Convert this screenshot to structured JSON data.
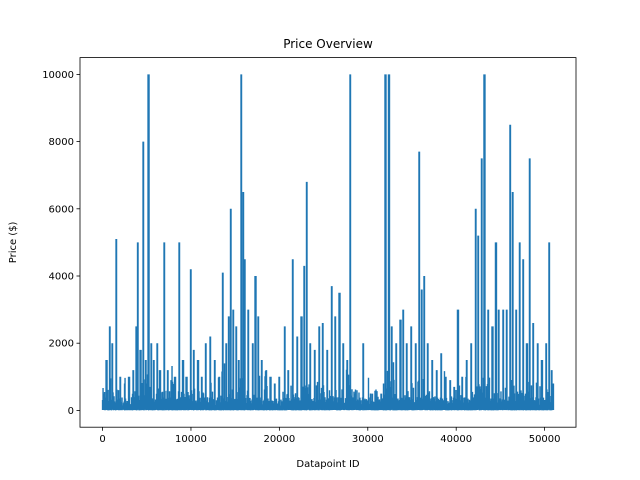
{
  "chart_data": {
    "type": "line",
    "title": "Price Overview",
    "xlabel": "Datapoint ID",
    "ylabel": "Price ($)",
    "xlim": [
      -2550,
      53550
    ],
    "ylim": [
      -500,
      10500
    ],
    "xticks": [
      0,
      10000,
      20000,
      30000,
      40000,
      50000
    ],
    "yticks": [
      0,
      2000,
      4000,
      6000,
      8000,
      10000
    ],
    "grid": false,
    "legend": "none",
    "series_color": "#1f77b4",
    "n_points": 51000,
    "baseline": {
      "min": 0,
      "typical_max": 400
    },
    "peaks": [
      [
        150,
        500
      ],
      [
        450,
        1500
      ],
      [
        800,
        2500
      ],
      [
        1100,
        2000
      ],
      [
        1550,
        5100
      ],
      [
        2000,
        1000
      ],
      [
        2500,
        800
      ],
      [
        3000,
        1000
      ],
      [
        3500,
        1200
      ],
      [
        3800,
        2500
      ],
      [
        4000,
        5000
      ],
      [
        4300,
        1800
      ],
      [
        4600,
        8000
      ],
      [
        4900,
        1500
      ],
      [
        5200,
        10000
      ],
      [
        5500,
        2000
      ],
      [
        5800,
        1500
      ],
      [
        6200,
        2000
      ],
      [
        6500,
        1200
      ],
      [
        7000,
        5000
      ],
      [
        7400,
        1200
      ],
      [
        7800,
        900
      ],
      [
        8200,
        1000
      ],
      [
        8700,
        5000
      ],
      [
        9100,
        1500
      ],
      [
        9500,
        1000
      ],
      [
        10000,
        4200
      ],
      [
        10300,
        1800
      ],
      [
        10800,
        1500
      ],
      [
        11200,
        1000
      ],
      [
        11700,
        2000
      ],
      [
        12200,
        2200
      ],
      [
        12700,
        1500
      ],
      [
        13200,
        1000
      ],
      [
        13600,
        4100
      ],
      [
        14000,
        2000
      ],
      [
        14300,
        2800
      ],
      [
        14500,
        6000
      ],
      [
        14800,
        3000
      ],
      [
        15100,
        2500
      ],
      [
        15400,
        1500
      ],
      [
        15700,
        10000
      ],
      [
        15900,
        6500
      ],
      [
        16100,
        4500
      ],
      [
        16500,
        3000
      ],
      [
        17000,
        2000
      ],
      [
        17300,
        4000
      ],
      [
        17600,
        2800
      ],
      [
        18000,
        1500
      ],
      [
        18500,
        1200
      ],
      [
        19000,
        1000
      ],
      [
        19500,
        800
      ],
      [
        20000,
        1000
      ],
      [
        20600,
        2500
      ],
      [
        21000,
        1200
      ],
      [
        21500,
        4500
      ],
      [
        22000,
        2200
      ],
      [
        22500,
        2800
      ],
      [
        22800,
        4300
      ],
      [
        23100,
        6800
      ],
      [
        23500,
        2000
      ],
      [
        24000,
        1800
      ],
      [
        24500,
        2500
      ],
      [
        24900,
        2600
      ],
      [
        25400,
        1800
      ],
      [
        25900,
        3700
      ],
      [
        26300,
        2800
      ],
      [
        26800,
        3500
      ],
      [
        27200,
        2000
      ],
      [
        27700,
        1500
      ],
      [
        28000,
        10000
      ],
      [
        28500,
        500
      ],
      [
        29000,
        300
      ],
      [
        29500,
        2000
      ],
      [
        30000,
        300
      ],
      [
        30500,
        500
      ],
      [
        31000,
        400
      ],
      [
        31500,
        500
      ],
      [
        32000,
        10000
      ],
      [
        32400,
        10000
      ],
      [
        32700,
        2500
      ],
      [
        33200,
        2000
      ],
      [
        33700,
        2700
      ],
      [
        34000,
        3000
      ],
      [
        34400,
        2000
      ],
      [
        34900,
        2500
      ],
      [
        35400,
        2000
      ],
      [
        35800,
        7700
      ],
      [
        36100,
        3600
      ],
      [
        36400,
        4000
      ],
      [
        36800,
        2000
      ],
      [
        37300,
        1500
      ],
      [
        37800,
        1200
      ],
      [
        38300,
        1700
      ],
      [
        38800,
        1000
      ],
      [
        39300,
        900
      ],
      [
        39800,
        700
      ],
      [
        40200,
        3000
      ],
      [
        40700,
        1000
      ],
      [
        41200,
        1500
      ],
      [
        41700,
        2000
      ],
      [
        42200,
        6000
      ],
      [
        42500,
        5200
      ],
      [
        42900,
        7500
      ],
      [
        43200,
        10000
      ],
      [
        43600,
        3000
      ],
      [
        44100,
        2500
      ],
      [
        44500,
        5000
      ],
      [
        44800,
        3000
      ],
      [
        45300,
        3000
      ],
      [
        45700,
        3000
      ],
      [
        46100,
        8500
      ],
      [
        46400,
        6500
      ],
      [
        46800,
        3000
      ],
      [
        47200,
        5000
      ],
      [
        47600,
        4500
      ],
      [
        48000,
        2000
      ],
      [
        48300,
        7500
      ],
      [
        48700,
        2600
      ],
      [
        49200,
        2000
      ],
      [
        49700,
        1500
      ],
      [
        50200,
        2000
      ],
      [
        50500,
        5000
      ],
      [
        50800,
        1200
      ],
      [
        51000,
        800
      ]
    ]
  }
}
